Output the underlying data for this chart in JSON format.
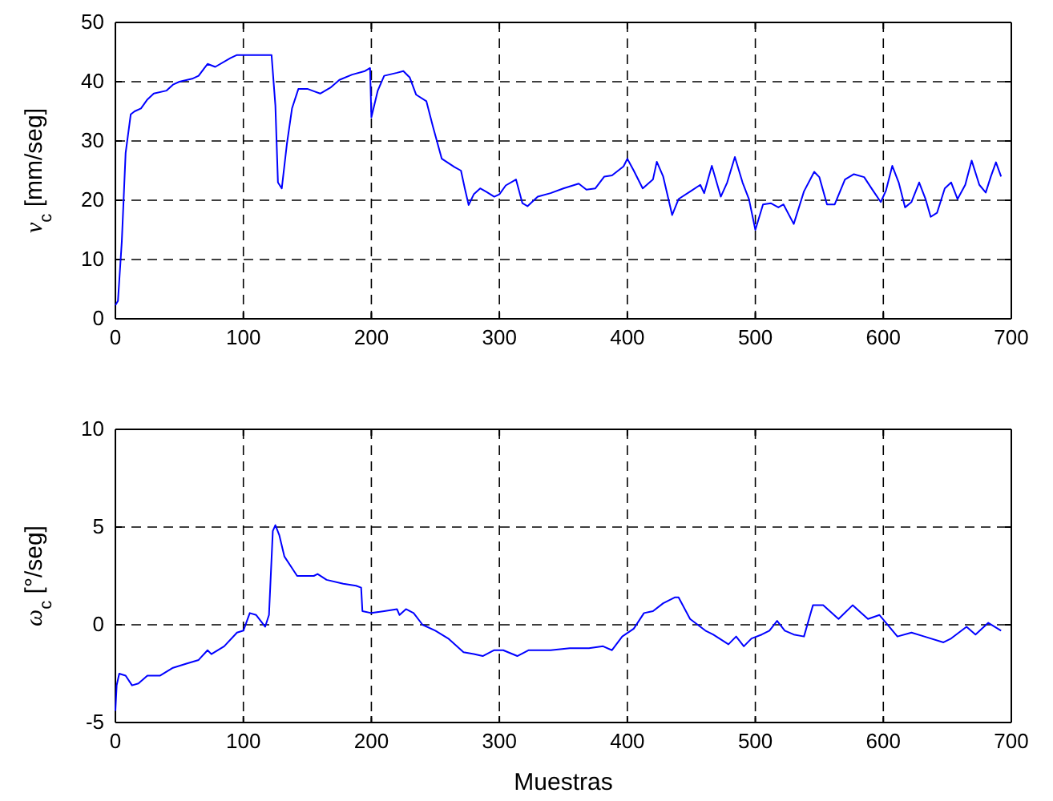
{
  "chart_data": [
    {
      "type": "line",
      "ylabel": "v$_{c}$ [mm/seg]",
      "xlim": [
        0,
        700
      ],
      "ylim": [
        0,
        50
      ],
      "xticks": [
        0,
        100,
        200,
        300,
        400,
        500,
        600,
        700
      ],
      "yticks": [
        0,
        10,
        20,
        30,
        40,
        50
      ],
      "grid": true,
      "series": [
        {
          "color": "#0000ff",
          "x": [
            0,
            2,
            5,
            8,
            12,
            15,
            20,
            25,
            30,
            40,
            45,
            50,
            60,
            65,
            72,
            78,
            90,
            95,
            122,
            125,
            127,
            130,
            134,
            138,
            143,
            150,
            155,
            160,
            168,
            175,
            185,
            195,
            199,
            200,
            205,
            210,
            220,
            225,
            230,
            235,
            243,
            248,
            255,
            260,
            265,
            270,
            273,
            276,
            280,
            285,
            290,
            296,
            300,
            305,
            313,
            318,
            322,
            330,
            340,
            350,
            362,
            368,
            375,
            382,
            388,
            397,
            400,
            405,
            412,
            420,
            423,
            428,
            435,
            440,
            450,
            457,
            460,
            466,
            473,
            478,
            484,
            490,
            495,
            500,
            506,
            512,
            518,
            522,
            530,
            538,
            546,
            550,
            556,
            562,
            570,
            577,
            585,
            592,
            598,
            602,
            607,
            612,
            617,
            622,
            628,
            633,
            637,
            642,
            648,
            653,
            658,
            664,
            669,
            675,
            680,
            684,
            688,
            692
          ],
          "values": [
            2.3,
            3,
            13,
            28,
            34.5,
            35,
            35.5,
            37,
            38,
            38.5,
            39.5,
            40,
            40.5,
            41,
            43,
            42.5,
            44,
            44.5,
            44.5,
            36,
            23,
            22,
            29.5,
            35.5,
            38.8,
            38.8,
            38.4,
            38,
            39,
            40.3,
            41.2,
            41.8,
            42.3,
            34,
            38.5,
            41,
            41.5,
            41.8,
            40.7,
            37.8,
            36.7,
            32.5,
            27,
            26.3,
            25.6,
            25,
            22,
            19.2,
            21,
            22,
            21.4,
            20.6,
            21,
            22.5,
            23.5,
            19.5,
            19,
            20.6,
            21.2,
            22,
            22.8,
            21.8,
            22,
            24,
            24.2,
            25.7,
            27,
            25,
            22,
            23.5,
            26.5,
            24,
            17.5,
            20.2,
            21.6,
            22.6,
            21.2,
            25.8,
            20.6,
            23,
            27.3,
            23,
            20.2,
            15,
            19.3,
            19.5,
            18.8,
            19.3,
            16,
            21.5,
            24.8,
            23.9,
            19.3,
            19.3,
            23.5,
            24.4,
            23.9,
            21.6,
            19.7,
            21.6,
            25.8,
            23,
            18.8,
            19.7,
            23,
            20.2,
            17.2,
            17.9,
            22,
            23,
            20.2,
            22.6,
            26.7,
            22.6,
            21.3,
            24,
            26.4,
            24
          ]
        }
      ]
    },
    {
      "type": "line",
      "ylabel": "ω$_{c}$ [°/seg]",
      "xlabel": "Muestras",
      "xlim": [
        0,
        700
      ],
      "ylim": [
        -5,
        10
      ],
      "xticks": [
        0,
        100,
        200,
        300,
        400,
        500,
        600,
        700
      ],
      "yticks": [
        -5,
        0,
        5,
        10
      ],
      "grid": true,
      "series": [
        {
          "color": "#0000ff",
          "x": [
            0,
            1,
            3,
            8,
            13,
            18,
            25,
            35,
            45,
            55,
            65,
            72,
            75,
            85,
            95,
            100,
            105,
            110,
            117,
            120,
            123,
            125,
            128,
            132,
            138,
            142,
            155,
            158,
            165,
            178,
            188,
            192,
            193,
            200,
            210,
            220,
            222,
            227,
            233,
            240,
            250,
            260,
            272,
            280,
            287,
            296,
            303,
            314,
            323,
            340,
            355,
            370,
            381,
            388,
            396,
            405,
            413,
            420,
            428,
            437,
            440,
            449,
            461,
            467,
            479,
            485,
            491,
            497,
            505,
            511,
            517,
            523,
            530,
            538,
            545,
            553,
            565,
            576,
            588,
            597,
            611,
            622,
            632,
            647,
            653,
            665,
            672,
            682,
            692
          ],
          "values": [
            -4.4,
            -3.1,
            -2.5,
            -2.6,
            -3.1,
            -3,
            -2.6,
            -2.6,
            -2.2,
            -2,
            -1.8,
            -1.3,
            -1.5,
            -1.1,
            -0.4,
            -0.3,
            0.6,
            0.5,
            -0.1,
            0.5,
            4.8,
            5.1,
            4.6,
            3.5,
            2.9,
            2.5,
            2.5,
            2.6,
            2.3,
            2.1,
            2,
            1.9,
            0.7,
            0.6,
            0.7,
            0.8,
            0.5,
            0.8,
            0.6,
            0,
            -0.3,
            -0.7,
            -1.4,
            -1.5,
            -1.6,
            -1.3,
            -1.3,
            -1.6,
            -1.3,
            -1.3,
            -1.2,
            -1.2,
            -1.1,
            -1.3,
            -0.6,
            -0.2,
            0.6,
            0.7,
            1.1,
            1.4,
            1.4,
            0.3,
            -0.3,
            -0.5,
            -1,
            -0.6,
            -1.1,
            -0.7,
            -0.5,
            -0.3,
            0.2,
            -0.3,
            -0.5,
            -0.6,
            1,
            1,
            0.3,
            1,
            0.3,
            0.5,
            -0.6,
            -0.4,
            -0.6,
            -0.9,
            -0.7,
            -0.1,
            -0.5,
            0.1,
            -0.3
          ]
        }
      ]
    }
  ]
}
